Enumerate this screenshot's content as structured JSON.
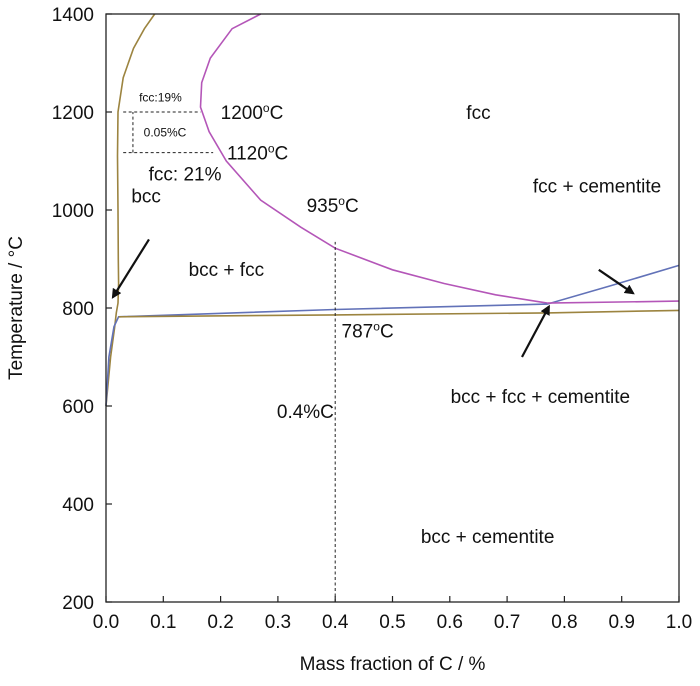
{
  "chart_data": {
    "type": "line",
    "title": "",
    "xlabel": "Mass fraction of C / %",
    "ylabel": "Temperature / °C",
    "xlim": [
      0.0,
      1.0
    ],
    "ylim": [
      200,
      1400
    ],
    "x_ticks": [
      "0.0",
      "0.1",
      "0.2",
      "0.3",
      "0.4",
      "0.5",
      "0.6",
      "0.7",
      "0.8",
      "0.9",
      "1.0"
    ],
    "y_ticks": [
      "200",
      "400",
      "600",
      "800",
      "1000",
      "1200",
      "1400"
    ],
    "grid": false,
    "colors": {
      "gold": "#9c8440",
      "purple": "#b456b8",
      "blue": "#6272b8",
      "axis": "#222222"
    },
    "series": [
      {
        "color": "gold",
        "points": [
          [
            0.0,
            600
          ],
          [
            0.008,
            700
          ],
          [
            0.015,
            760
          ],
          [
            0.018,
            790
          ],
          [
            0.021,
            810
          ],
          [
            0.022,
            850
          ],
          [
            0.0215,
            900
          ],
          [
            0.021,
            1000
          ],
          [
            0.02,
            1110
          ],
          [
            0.021,
            1200
          ],
          [
            0.03,
            1270
          ],
          [
            0.048,
            1330
          ],
          [
            0.067,
            1370
          ],
          [
            0.085,
            1400
          ]
        ]
      },
      {
        "color": "purple",
        "points": [
          [
            0.77,
            810
          ],
          [
            0.68,
            827
          ],
          [
            0.59,
            850
          ],
          [
            0.5,
            878
          ],
          [
            0.4,
            922
          ],
          [
            0.34,
            965
          ],
          [
            0.27,
            1020
          ],
          [
            0.21,
            1100
          ],
          [
            0.18,
            1160
          ],
          [
            0.165,
            1210
          ],
          [
            0.167,
            1260
          ],
          [
            0.182,
            1310
          ],
          [
            0.22,
            1370
          ],
          [
            0.27,
            1400
          ]
        ]
      },
      {
        "color": "blue",
        "points": [
          [
            0.0,
            600
          ],
          [
            0.005,
            700
          ],
          [
            0.014,
            762
          ],
          [
            0.022,
            782
          ],
          [
            0.4,
            797
          ],
          [
            0.77,
            808
          ],
          [
            0.88,
            845
          ],
          [
            1.0,
            887
          ]
        ]
      },
      {
        "color": "gold",
        "points": [
          [
            0.022,
            782
          ],
          [
            0.4,
            786
          ],
          [
            0.77,
            790
          ],
          [
            1.0,
            795
          ]
        ]
      },
      {
        "color": "purple",
        "points": [
          [
            0.77,
            810
          ],
          [
            1.0,
            814
          ]
        ]
      }
    ],
    "reference_lines": [
      {
        "type": "vertical",
        "x": 0.4,
        "y_from": 200,
        "y_to": 935
      },
      {
        "type": "horizontal",
        "y": 1200,
        "x_from": 0.03,
        "x_to": 0.165
      },
      {
        "type": "horizontal",
        "y": 1117,
        "x_from": 0.03,
        "x_to": 0.187
      },
      {
        "type": "vertical",
        "x": 0.047,
        "y_from": 1117,
        "y_to": 1200
      }
    ],
    "annotations": [
      {
        "text": "fcc",
        "x": 0.65,
        "y": 1200
      },
      {
        "text": "bcc",
        "x": 0.07,
        "y": 1030
      },
      {
        "text": "bcc + fcc",
        "x": 0.21,
        "y": 880
      },
      {
        "text": "fcc + cementite",
        "x": 0.857,
        "y": 1050
      },
      {
        "text": "bcc + fcc + cementite",
        "x": 0.758,
        "y": 620
      },
      {
        "text": "bcc + cementite",
        "x": 0.666,
        "y": 335
      },
      {
        "text": "0.4%C",
        "x": 0.348,
        "y": 590
      },
      {
        "text": "935",
        "x": 0.385,
        "y": 1010
      },
      {
        "text": "787",
        "x": 0.446,
        "y": 754
      },
      {
        "text": "1200",
        "x": 0.235,
        "y": 1200
      },
      {
        "text": "1120",
        "x": 0.246,
        "y": 1117
      },
      {
        "text": "fcc:19%",
        "x": 0.095,
        "y": 1230
      },
      {
        "text": "0.05%C",
        "x": 0.103,
        "y": 1158
      },
      {
        "text": "fcc: 21%",
        "x": 0.138,
        "y": 1075
      }
    ],
    "arrows": [
      {
        "from": [
          0.075,
          940
        ],
        "to": [
          0.012,
          822
        ]
      },
      {
        "from": [
          0.86,
          878
        ],
        "to": [
          0.92,
          830
        ]
      },
      {
        "from": [
          0.726,
          700
        ],
        "to": [
          0.773,
          803
        ]
      }
    ]
  }
}
